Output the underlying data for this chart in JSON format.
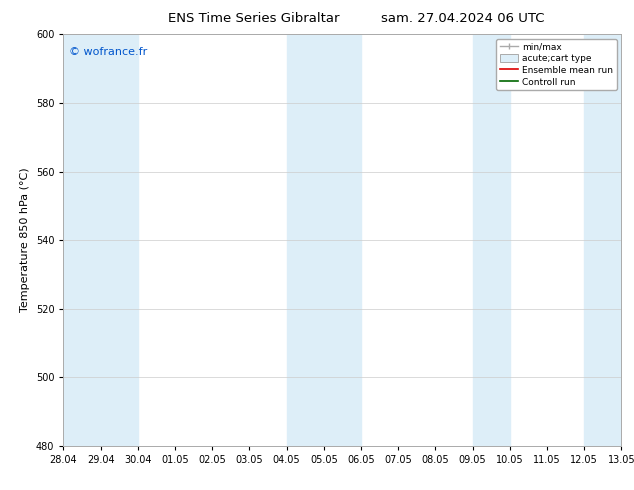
{
  "title_left": "ENS Time Series Gibraltar",
  "title_right": "sam. 27.04.2024 06 UTC",
  "ylabel": "Temperature 850 hPa (°C)",
  "watermark": "© wofrance.fr",
  "watermark_color": "#0055cc",
  "xlim": [
    0,
    15
  ],
  "ylim": [
    480,
    600
  ],
  "yticks": [
    480,
    500,
    520,
    540,
    560,
    580,
    600
  ],
  "xtick_labels": [
    "28.04",
    "29.04",
    "30.04",
    "01.05",
    "02.05",
    "03.05",
    "04.05",
    "05.05",
    "06.05",
    "07.05",
    "08.05",
    "09.05",
    "10.05",
    "11.05",
    "12.05",
    "13.05"
  ],
  "xtick_positions": [
    0,
    1,
    2,
    3,
    4,
    5,
    6,
    7,
    8,
    9,
    10,
    11,
    12,
    13,
    14,
    15
  ],
  "shaded_bands": [
    {
      "xmin": 0,
      "xmax": 1,
      "color": "#ddeef8"
    },
    {
      "xmin": 1,
      "xmax": 2,
      "color": "#ddeef8"
    },
    {
      "xmin": 6,
      "xmax": 7,
      "color": "#ddeef8"
    },
    {
      "xmin": 7,
      "xmax": 8,
      "color": "#ddeef8"
    },
    {
      "xmin": 11,
      "xmax": 12,
      "color": "#ddeef8"
    },
    {
      "xmin": 14,
      "xmax": 15,
      "color": "#ddeef8"
    }
  ],
  "legend_entries": [
    {
      "label": "min/max",
      "type": "minmax",
      "color": "#aaaaaa"
    },
    {
      "label": "acute;cart type",
      "type": "patch",
      "facecolor": "#ddeef8",
      "edgecolor": "#aaaaaa"
    },
    {
      "label": "Ensemble mean run",
      "type": "line",
      "color": "#dd0000",
      "linewidth": 1.2
    },
    {
      "label": "Controll run",
      "type": "line",
      "color": "#006600",
      "linewidth": 1.2
    }
  ],
  "bg_color": "#ffffff",
  "plot_bg_color": "#ffffff",
  "grid_color": "#cccccc",
  "tick_fontsize": 7,
  "label_fontsize": 8,
  "title_fontsize": 9.5
}
